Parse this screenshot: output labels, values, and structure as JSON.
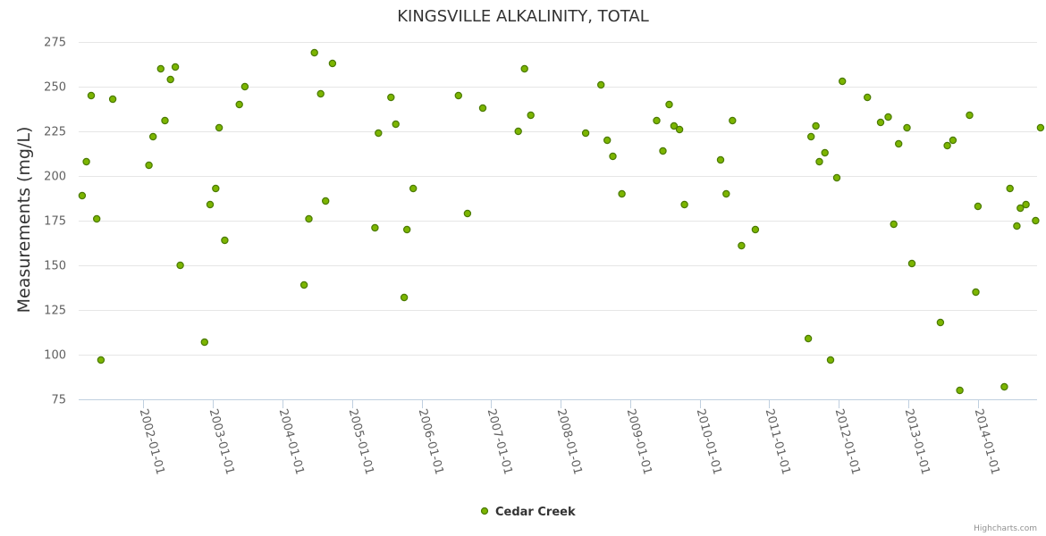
{
  "chart_data": {
    "type": "scatter",
    "title": "KINGSVILLE ALKALINITY, TOTAL",
    "xlabel": "",
    "ylabel": "Measurements (mg/L)",
    "ylim": [
      75,
      275
    ],
    "yticks": [
      75,
      100,
      125,
      150,
      175,
      200,
      225,
      250,
      275
    ],
    "xlim": [
      2001.07,
      2014.85
    ],
    "xticks": [
      {
        "label": "2002-01-01",
        "value": 2002.0
      },
      {
        "label": "2003-01-01",
        "value": 2003.0
      },
      {
        "label": "2004-01-01",
        "value": 2004.0
      },
      {
        "label": "2005-01-01",
        "value": 2005.0
      },
      {
        "label": "2006-01-01",
        "value": 2006.0
      },
      {
        "label": "2007-01-01",
        "value": 2007.0
      },
      {
        "label": "2008-01-01",
        "value": 2008.0
      },
      {
        "label": "2009-01-01",
        "value": 2009.0
      },
      {
        "label": "2010-01-01",
        "value": 2010.0
      },
      {
        "label": "2011-01-01",
        "value": 2011.0
      },
      {
        "label": "2012-01-01",
        "value": 2012.0
      },
      {
        "label": "2013-01-01",
        "value": 2013.0
      },
      {
        "label": "2014-01-01",
        "value": 2014.0
      }
    ],
    "legend_position": "bottom-center",
    "credits": "Highcharts.com",
    "series": [
      {
        "name": "Cedar Creek",
        "color": "#7cb500",
        "border_color": "#4a7a00",
        "points": [
          [
            2001.12,
            189
          ],
          [
            2001.18,
            208
          ],
          [
            2001.25,
            245
          ],
          [
            2001.33,
            176
          ],
          [
            2001.39,
            97
          ],
          [
            2001.56,
            243
          ],
          [
            2002.08,
            206
          ],
          [
            2002.14,
            222
          ],
          [
            2002.25,
            260
          ],
          [
            2002.31,
            231
          ],
          [
            2002.39,
            254
          ],
          [
            2002.46,
            261
          ],
          [
            2002.53,
            150
          ],
          [
            2002.88,
            107
          ],
          [
            2002.96,
            184
          ],
          [
            2003.04,
            193
          ],
          [
            2003.09,
            227
          ],
          [
            2003.17,
            164
          ],
          [
            2003.38,
            240
          ],
          [
            2003.46,
            250
          ],
          [
            2004.31,
            139
          ],
          [
            2004.38,
            176
          ],
          [
            2004.46,
            269
          ],
          [
            2004.55,
            246
          ],
          [
            2004.62,
            186
          ],
          [
            2004.72,
            263
          ],
          [
            2005.33,
            171
          ],
          [
            2005.38,
            224
          ],
          [
            2005.56,
            244
          ],
          [
            2005.63,
            229
          ],
          [
            2005.75,
            132
          ],
          [
            2005.79,
            170
          ],
          [
            2005.88,
            193
          ],
          [
            2006.53,
            245
          ],
          [
            2006.66,
            179
          ],
          [
            2006.88,
            238
          ],
          [
            2007.39,
            225
          ],
          [
            2007.48,
            260
          ],
          [
            2007.57,
            234
          ],
          [
            2008.36,
            224
          ],
          [
            2008.58,
            251
          ],
          [
            2008.67,
            220
          ],
          [
            2008.75,
            211
          ],
          [
            2008.88,
            190
          ],
          [
            2009.38,
            231
          ],
          [
            2009.47,
            214
          ],
          [
            2009.56,
            240
          ],
          [
            2009.63,
            228
          ],
          [
            2009.71,
            226
          ],
          [
            2009.78,
            184
          ],
          [
            2010.3,
            209
          ],
          [
            2010.38,
            190
          ],
          [
            2010.47,
            231
          ],
          [
            2010.6,
            161
          ],
          [
            2010.8,
            170
          ],
          [
            2011.56,
            109
          ],
          [
            2011.6,
            222
          ],
          [
            2011.67,
            228
          ],
          [
            2011.72,
            208
          ],
          [
            2011.8,
            213
          ],
          [
            2011.88,
            97
          ],
          [
            2011.97,
            199
          ],
          [
            2012.05,
            253
          ],
          [
            2012.41,
            244
          ],
          [
            2012.6,
            230
          ],
          [
            2012.71,
            233
          ],
          [
            2012.79,
            173
          ],
          [
            2012.86,
            218
          ],
          [
            2012.98,
            227
          ],
          [
            2013.05,
            151
          ],
          [
            2013.46,
            118
          ],
          [
            2013.56,
            217
          ],
          [
            2013.64,
            220
          ],
          [
            2013.74,
            80
          ],
          [
            2013.88,
            234
          ],
          [
            2013.97,
            135
          ],
          [
            2014.0,
            183
          ],
          [
            2014.38,
            82
          ],
          [
            2014.46,
            193
          ],
          [
            2014.56,
            172
          ],
          [
            2014.61,
            182
          ],
          [
            2014.69,
            184
          ],
          [
            2014.83,
            175
          ],
          [
            2014.9,
            227
          ]
        ]
      }
    ]
  }
}
